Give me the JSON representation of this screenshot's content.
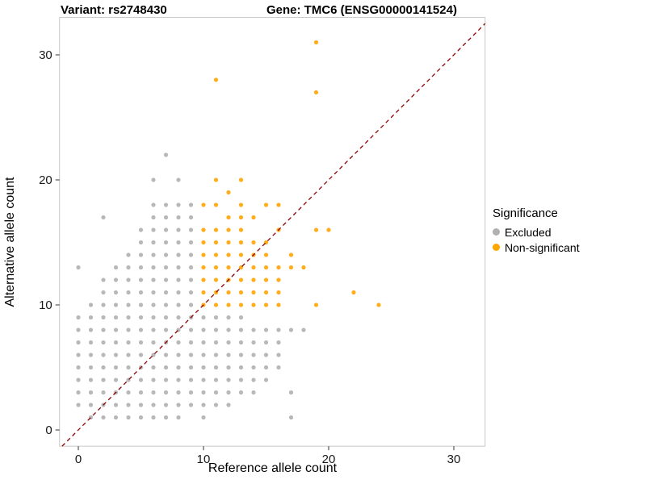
{
  "titles": {
    "variant": "Variant: rs2748430",
    "gene": "Gene: TMC6 (ENSG00000141524)"
  },
  "axes": {
    "xlabel": "Reference allele count",
    "ylabel": "Alternative allele count"
  },
  "legend": {
    "title": "Significance",
    "items": [
      {
        "label": "Excluded",
        "color": "#b0b0b0"
      },
      {
        "label": "Non-significant",
        "color": "#FFA500"
      }
    ]
  },
  "chart_data": {
    "type": "scatter",
    "title": "Variant: rs2748430  /  Gene: TMC6 (ENSG00000141524)",
    "xlabel": "Reference allele count",
    "ylabel": "Alternative allele count",
    "xlim": [
      -1.5,
      32.5
    ],
    "ylim": [
      -1.3,
      33
    ],
    "xticks": [
      0,
      10,
      20,
      30
    ],
    "yticks": [
      0,
      10,
      20,
      30
    ],
    "grid": false,
    "legend_position": "right",
    "identity_line": {
      "style": "dashed",
      "color": "#8B0000",
      "from": [
        -1.3,
        -1.3
      ],
      "to": [
        32.5,
        32.5
      ]
    },
    "point_radius": 2.6,
    "series": [
      {
        "name": "Excluded",
        "color": "#b0b0b0",
        "points": [
          [
            0,
            2
          ],
          [
            0,
            3
          ],
          [
            0,
            4
          ],
          [
            0,
            5
          ],
          [
            0,
            6
          ],
          [
            0,
            7
          ],
          [
            0,
            8
          ],
          [
            0,
            9
          ],
          [
            0,
            13
          ],
          [
            1,
            1
          ],
          [
            1,
            2
          ],
          [
            1,
            3
          ],
          [
            1,
            4
          ],
          [
            1,
            5
          ],
          [
            1,
            6
          ],
          [
            1,
            7
          ],
          [
            1,
            8
          ],
          [
            1,
            9
          ],
          [
            1,
            10
          ],
          [
            2,
            1
          ],
          [
            2,
            2
          ],
          [
            2,
            3
          ],
          [
            2,
            4
          ],
          [
            2,
            5
          ],
          [
            2,
            6
          ],
          [
            2,
            7
          ],
          [
            2,
            8
          ],
          [
            2,
            9
          ],
          [
            2,
            10
          ],
          [
            2,
            11
          ],
          [
            2,
            12
          ],
          [
            2,
            17
          ],
          [
            3,
            1
          ],
          [
            3,
            2
          ],
          [
            3,
            3
          ],
          [
            3,
            4
          ],
          [
            3,
            5
          ],
          [
            3,
            6
          ],
          [
            3,
            7
          ],
          [
            3,
            8
          ],
          [
            3,
            9
          ],
          [
            3,
            10
          ],
          [
            3,
            11
          ],
          [
            3,
            12
          ],
          [
            3,
            13
          ],
          [
            4,
            1
          ],
          [
            4,
            2
          ],
          [
            4,
            3
          ],
          [
            4,
            4
          ],
          [
            4,
            5
          ],
          [
            4,
            6
          ],
          [
            4,
            7
          ],
          [
            4,
            8
          ],
          [
            4,
            9
          ],
          [
            4,
            10
          ],
          [
            4,
            11
          ],
          [
            4,
            12
          ],
          [
            4,
            13
          ],
          [
            4,
            14
          ],
          [
            5,
            1
          ],
          [
            5,
            2
          ],
          [
            5,
            3
          ],
          [
            5,
            4
          ],
          [
            5,
            5
          ],
          [
            5,
            6
          ],
          [
            5,
            7
          ],
          [
            5,
            8
          ],
          [
            5,
            9
          ],
          [
            5,
            10
          ],
          [
            5,
            11
          ],
          [
            5,
            12
          ],
          [
            5,
            13
          ],
          [
            5,
            14
          ],
          [
            5,
            15
          ],
          [
            5,
            16
          ],
          [
            6,
            1
          ],
          [
            6,
            2
          ],
          [
            6,
            3
          ],
          [
            6,
            4
          ],
          [
            6,
            5
          ],
          [
            6,
            6
          ],
          [
            6,
            7
          ],
          [
            6,
            8
          ],
          [
            6,
            9
          ],
          [
            6,
            10
          ],
          [
            6,
            11
          ],
          [
            6,
            12
          ],
          [
            6,
            13
          ],
          [
            6,
            14
          ],
          [
            6,
            15
          ],
          [
            6,
            16
          ],
          [
            6,
            17
          ],
          [
            6,
            18
          ],
          [
            6,
            20
          ],
          [
            7,
            1
          ],
          [
            7,
            2
          ],
          [
            7,
            3
          ],
          [
            7,
            4
          ],
          [
            7,
            5
          ],
          [
            7,
            6
          ],
          [
            7,
            7
          ],
          [
            7,
            8
          ],
          [
            7,
            9
          ],
          [
            7,
            10
          ],
          [
            7,
            11
          ],
          [
            7,
            12
          ],
          [
            7,
            13
          ],
          [
            7,
            14
          ],
          [
            7,
            15
          ],
          [
            7,
            16
          ],
          [
            7,
            17
          ],
          [
            7,
            18
          ],
          [
            7,
            22
          ],
          [
            8,
            1
          ],
          [
            8,
            2
          ],
          [
            8,
            3
          ],
          [
            8,
            4
          ],
          [
            8,
            5
          ],
          [
            8,
            6
          ],
          [
            8,
            7
          ],
          [
            8,
            8
          ],
          [
            8,
            9
          ],
          [
            8,
            10
          ],
          [
            8,
            11
          ],
          [
            8,
            12
          ],
          [
            8,
            13
          ],
          [
            8,
            14
          ],
          [
            8,
            15
          ],
          [
            8,
            16
          ],
          [
            8,
            17
          ],
          [
            8,
            18
          ],
          [
            8,
            20
          ],
          [
            9,
            2
          ],
          [
            9,
            3
          ],
          [
            9,
            4
          ],
          [
            9,
            5
          ],
          [
            9,
            6
          ],
          [
            9,
            7
          ],
          [
            9,
            8
          ],
          [
            9,
            9
          ],
          [
            9,
            10
          ],
          [
            9,
            11
          ],
          [
            9,
            12
          ],
          [
            9,
            13
          ],
          [
            9,
            14
          ],
          [
            9,
            15
          ],
          [
            9,
            16
          ],
          [
            9,
            17
          ],
          [
            9,
            18
          ],
          [
            10,
            1
          ],
          [
            10,
            2
          ],
          [
            10,
            3
          ],
          [
            10,
            4
          ],
          [
            10,
            5
          ],
          [
            10,
            6
          ],
          [
            10,
            7
          ],
          [
            10,
            8
          ],
          [
            10,
            9
          ],
          [
            11,
            2
          ],
          [
            11,
            3
          ],
          [
            11,
            4
          ],
          [
            11,
            5
          ],
          [
            11,
            6
          ],
          [
            11,
            7
          ],
          [
            11,
            8
          ],
          [
            11,
            9
          ],
          [
            12,
            2
          ],
          [
            12,
            3
          ],
          [
            12,
            4
          ],
          [
            12,
            5
          ],
          [
            12,
            6
          ],
          [
            12,
            7
          ],
          [
            12,
            8
          ],
          [
            12,
            9
          ],
          [
            13,
            3
          ],
          [
            13,
            4
          ],
          [
            13,
            5
          ],
          [
            13,
            6
          ],
          [
            13,
            7
          ],
          [
            13,
            8
          ],
          [
            13,
            9
          ],
          [
            14,
            3
          ],
          [
            14,
            4
          ],
          [
            14,
            5
          ],
          [
            14,
            6
          ],
          [
            14,
            7
          ],
          [
            14,
            8
          ],
          [
            15,
            4
          ],
          [
            15,
            5
          ],
          [
            15,
            6
          ],
          [
            15,
            7
          ],
          [
            15,
            8
          ],
          [
            16,
            5
          ],
          [
            16,
            6
          ],
          [
            16,
            7
          ],
          [
            16,
            8
          ],
          [
            17,
            1
          ],
          [
            17,
            3
          ],
          [
            17,
            8
          ],
          [
            18,
            8
          ]
        ]
      },
      {
        "name": "Non-significant",
        "color": "#FFA500",
        "points": [
          [
            10,
            10
          ],
          [
            10,
            11
          ],
          [
            10,
            12
          ],
          [
            10,
            13
          ],
          [
            10,
            14
          ],
          [
            10,
            15
          ],
          [
            10,
            16
          ],
          [
            10,
            18
          ],
          [
            11,
            10
          ],
          [
            11,
            11
          ],
          [
            11,
            12
          ],
          [
            11,
            13
          ],
          [
            11,
            14
          ],
          [
            11,
            15
          ],
          [
            11,
            16
          ],
          [
            11,
            18
          ],
          [
            11,
            20
          ],
          [
            11,
            28
          ],
          [
            12,
            10
          ],
          [
            12,
            11
          ],
          [
            12,
            12
          ],
          [
            12,
            13
          ],
          [
            12,
            14
          ],
          [
            12,
            15
          ],
          [
            12,
            16
          ],
          [
            12,
            17
          ],
          [
            12,
            19
          ],
          [
            13,
            10
          ],
          [
            13,
            11
          ],
          [
            13,
            12
          ],
          [
            13,
            13
          ],
          [
            13,
            14
          ],
          [
            13,
            15
          ],
          [
            13,
            16
          ],
          [
            13,
            17
          ],
          [
            13,
            18
          ],
          [
            13,
            20
          ],
          [
            14,
            10
          ],
          [
            14,
            11
          ],
          [
            14,
            12
          ],
          [
            14,
            13
          ],
          [
            14,
            14
          ],
          [
            14,
            15
          ],
          [
            14,
            17
          ],
          [
            15,
            10
          ],
          [
            15,
            11
          ],
          [
            15,
            12
          ],
          [
            15,
            13
          ],
          [
            15,
            14
          ],
          [
            15,
            15
          ],
          [
            15,
            18
          ],
          [
            16,
            10
          ],
          [
            16,
            11
          ],
          [
            16,
            12
          ],
          [
            16,
            13
          ],
          [
            16,
            16
          ],
          [
            16,
            18
          ],
          [
            17,
            13
          ],
          [
            17,
            14
          ],
          [
            18,
            13
          ],
          [
            19,
            10
          ],
          [
            19,
            16
          ],
          [
            19,
            27
          ],
          [
            19,
            31
          ],
          [
            20,
            16
          ],
          [
            22,
            11
          ],
          [
            24,
            10
          ]
        ]
      }
    ]
  }
}
